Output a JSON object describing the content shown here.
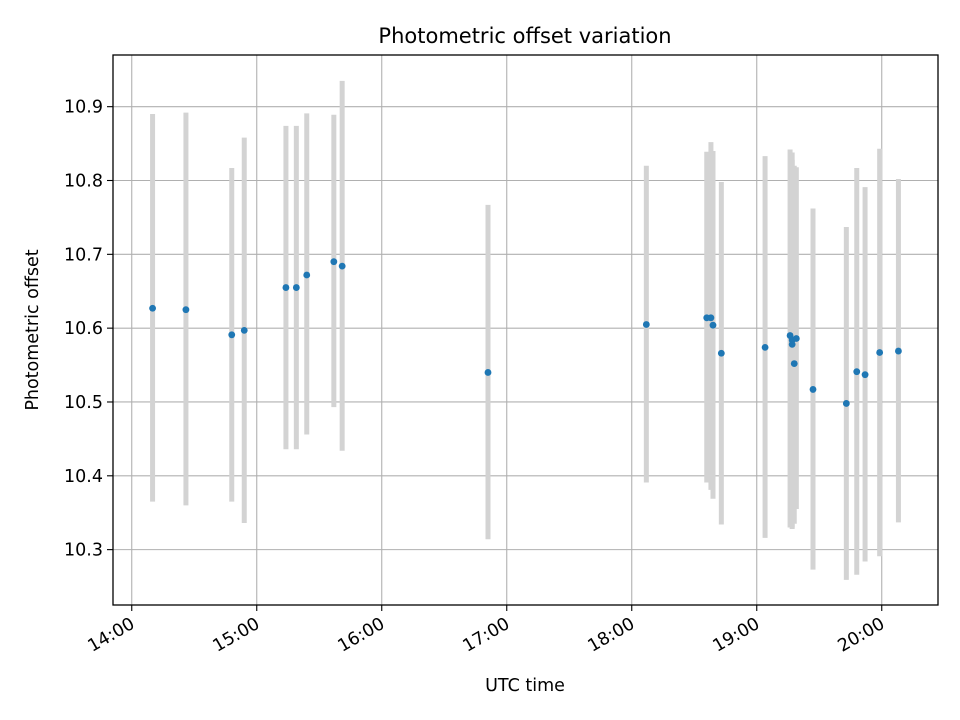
{
  "chart_data": {
    "type": "scatter",
    "title": "Photometric offset variation",
    "xlabel": "UTC time",
    "ylabel": "Photometric offset",
    "x_tick_labels": [
      "14:00",
      "15:00",
      "16:00",
      "17:00",
      "18:00",
      "19:00",
      "20:00"
    ],
    "y_tick_labels": [
      "10.3",
      "10.4",
      "10.5",
      "10.6",
      "10.7",
      "10.8",
      "10.9"
    ],
    "x_ticks": [
      "14:00",
      "15:00",
      "16:00",
      "17:00",
      "18:00",
      "19:00",
      "20:00"
    ],
    "y_ticks": [
      10.3,
      10.4,
      10.5,
      10.6,
      10.7,
      10.8,
      10.9
    ],
    "xlim": [
      "13:51",
      "20:27"
    ],
    "ylim": [
      10.225,
      10.97
    ],
    "grid": true,
    "marker_color": "#1f77b4",
    "errorbar_color": "#d3d3d3",
    "points": [
      {
        "time": "14:10",
        "y": 10.627,
        "low": 10.365,
        "high": 10.89
      },
      {
        "time": "14:26",
        "y": 10.625,
        "low": 10.36,
        "high": 10.892
      },
      {
        "time": "14:48",
        "y": 10.591,
        "low": 10.365,
        "high": 10.817
      },
      {
        "time": "14:54",
        "y": 10.597,
        "low": 10.336,
        "high": 10.858
      },
      {
        "time": "15:14",
        "y": 10.655,
        "low": 10.436,
        "high": 10.874
      },
      {
        "time": "15:19",
        "y": 10.655,
        "low": 10.436,
        "high": 10.874
      },
      {
        "time": "15:24",
        "y": 10.672,
        "low": 10.456,
        "high": 10.891
      },
      {
        "time": "15:37",
        "y": 10.69,
        "low": 10.493,
        "high": 10.889
      },
      {
        "time": "15:41",
        "y": 10.684,
        "low": 10.434,
        "high": 10.935
      },
      {
        "time": "16:51",
        "y": 10.54,
        "low": 10.314,
        "high": 10.767
      },
      {
        "time": "18:07",
        "y": 10.605,
        "low": 10.391,
        "high": 10.82
      },
      {
        "time": "18:36",
        "y": 10.614,
        "low": 10.391,
        "high": 10.839
      },
      {
        "time": "18:38",
        "y": 10.614,
        "low": 10.381,
        "high": 10.852
      },
      {
        "time": "18:39",
        "y": 10.604,
        "low": 10.369,
        "high": 10.84
      },
      {
        "time": "18:43",
        "y": 10.566,
        "low": 10.334,
        "high": 10.798
      },
      {
        "time": "19:04",
        "y": 10.574,
        "low": 10.316,
        "high": 10.833
      },
      {
        "time": "19:16",
        "y": 10.59,
        "low": 10.33,
        "high": 10.842
      },
      {
        "time": "19:17",
        "y": 10.584,
        "low": 10.33,
        "high": 10.838
      },
      {
        "time": "19:17",
        "y": 10.578,
        "low": 10.328,
        "high": 10.828
      },
      {
        "time": "19:18",
        "y": 10.552,
        "low": 10.335,
        "high": 10.82
      },
      {
        "time": "19:19",
        "y": 10.586,
        "low": 10.355,
        "high": 10.818
      },
      {
        "time": "19:27",
        "y": 10.517,
        "low": 10.273,
        "high": 10.762
      },
      {
        "time": "19:43",
        "y": 10.498,
        "low": 10.259,
        "high": 10.737
      },
      {
        "time": "19:48",
        "y": 10.541,
        "low": 10.266,
        "high": 10.817
      },
      {
        "time": "19:52",
        "y": 10.537,
        "low": 10.284,
        "high": 10.791
      },
      {
        "time": "19:59",
        "y": 10.567,
        "low": 10.291,
        "high": 10.843
      },
      {
        "time": "20:08",
        "y": 10.569,
        "low": 10.337,
        "high": 10.802
      }
    ]
  }
}
